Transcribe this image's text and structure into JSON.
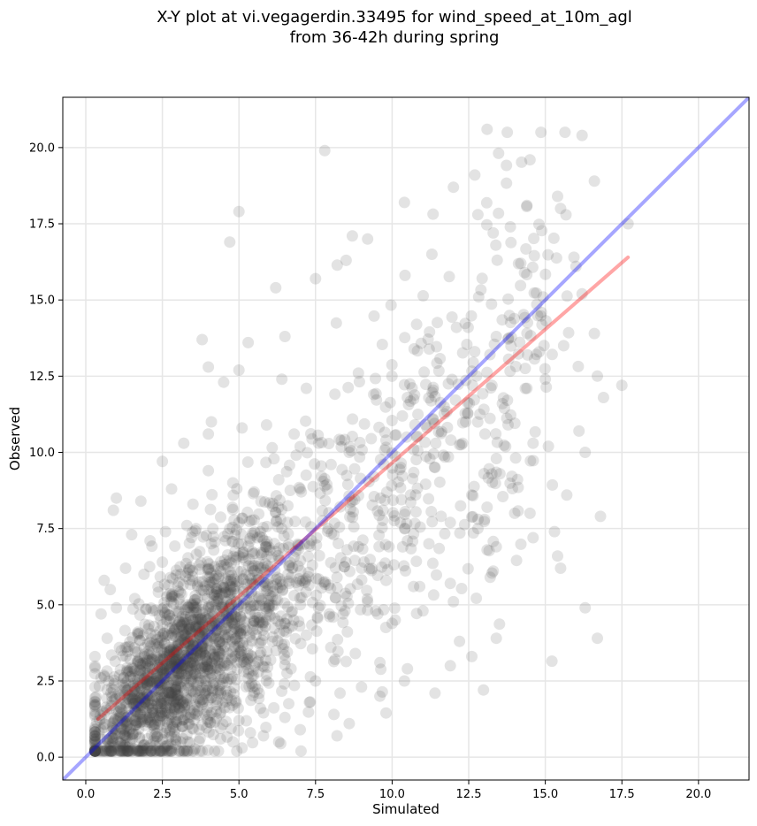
{
  "chart_data": {
    "type": "scatter",
    "title_lines": [
      "X-Y plot at vi.vegagerdin.33495 for wind_speed_at_10m_agl",
      "from 36-42h during spring"
    ],
    "xlabel": "Simulated",
    "ylabel": "Observed",
    "xlim": [
      -0.75,
      21.65
    ],
    "ylim": [
      -0.75,
      21.65
    ],
    "xticks": [
      0.0,
      2.5,
      5.0,
      7.5,
      10.0,
      12.5,
      15.0,
      17.5,
      20.0
    ],
    "yticks": [
      0.0,
      2.5,
      5.0,
      7.5,
      10.0,
      12.5,
      15.0,
      17.5,
      20.0
    ],
    "xtick_labels": [
      "0.0",
      "2.5",
      "5.0",
      "7.5",
      "10.0",
      "12.5",
      "15.0",
      "17.5",
      "20.0"
    ],
    "ytick_labels": [
      "0.0",
      "2.5",
      "5.0",
      "7.5",
      "10.0",
      "12.5",
      "15.0",
      "17.5",
      "20.0"
    ],
    "grid": true,
    "point_color": "#404040",
    "point_alpha": 0.15,
    "point_count_approx": 2500,
    "points": [
      [
        13.1,
        20.6
      ],
      [
        16.2,
        20.4
      ],
      [
        7.8,
        19.9
      ],
      [
        14.5,
        19.6
      ],
      [
        12.7,
        19.1
      ],
      [
        16.6,
        18.9
      ],
      [
        12.0,
        18.7
      ],
      [
        10.4,
        18.2
      ],
      [
        15.4,
        18.4
      ],
      [
        14.4,
        18.1
      ],
      [
        5.0,
        17.9
      ],
      [
        15.5,
        18.0
      ],
      [
        4.7,
        16.9
      ],
      [
        8.7,
        17.1
      ],
      [
        9.2,
        17.0
      ],
      [
        17.7,
        17.5
      ],
      [
        12.8,
        17.8
      ],
      [
        13.3,
        17.2
      ],
      [
        6.2,
        15.4
      ],
      [
        7.5,
        15.7
      ],
      [
        8.5,
        16.3
      ],
      [
        11.3,
        16.5
      ],
      [
        14.2,
        16.2
      ],
      [
        16.0,
        16.1
      ],
      [
        16.2,
        15.2
      ],
      [
        5.3,
        13.6
      ],
      [
        3.8,
        13.7
      ],
      [
        6.5,
        13.8
      ],
      [
        10.8,
        14.2
      ],
      [
        12.1,
        14.1
      ],
      [
        13.4,
        13.8
      ],
      [
        15.6,
        13.5
      ],
      [
        16.6,
        13.9
      ],
      [
        17.5,
        12.2
      ],
      [
        16.7,
        12.5
      ],
      [
        15.0,
        12.4
      ],
      [
        14.4,
        12.1
      ],
      [
        13.6,
        11.6
      ],
      [
        4.0,
        12.8
      ],
      [
        4.5,
        12.3
      ],
      [
        5.0,
        12.7
      ],
      [
        6.4,
        12.4
      ],
      [
        7.2,
        12.1
      ],
      [
        8.9,
        12.6
      ],
      [
        9.4,
        11.9
      ],
      [
        10.5,
        11.8
      ],
      [
        11.7,
        11.5
      ],
      [
        12.4,
        11.0
      ],
      [
        2.5,
        9.7
      ],
      [
        3.2,
        10.3
      ],
      [
        4.0,
        10.6
      ],
      [
        4.1,
        11.0
      ],
      [
        5.1,
        10.8
      ],
      [
        5.9,
        10.9
      ],
      [
        6.8,
        10.6
      ],
      [
        7.6,
        10.3
      ],
      [
        8.6,
        10.0
      ],
      [
        9.8,
        10.4
      ],
      [
        10.7,
        10.1
      ],
      [
        11.4,
        9.5
      ],
      [
        12.3,
        10.3
      ],
      [
        13.0,
        9.3
      ],
      [
        14.6,
        10.3
      ],
      [
        15.1,
        10.2
      ],
      [
        16.1,
        10.7
      ],
      [
        16.3,
        10.0
      ],
      [
        16.9,
        11.8
      ],
      [
        1.0,
        8.5
      ],
      [
        0.9,
        8.1
      ],
      [
        1.8,
        8.4
      ],
      [
        2.8,
        8.8
      ],
      [
        3.5,
        8.3
      ],
      [
        4.0,
        9.4
      ],
      [
        4.8,
        9.0
      ],
      [
        5.5,
        8.7
      ],
      [
        6.3,
        9.1
      ],
      [
        7.0,
        8.8
      ],
      [
        7.8,
        8.9
      ],
      [
        8.7,
        8.4
      ],
      [
        9.7,
        8.1
      ],
      [
        10.6,
        8.6
      ],
      [
        11.6,
        7.9
      ],
      [
        12.6,
        8.6
      ],
      [
        13.1,
        8.2
      ],
      [
        14.0,
        8.0
      ],
      [
        14.5,
        8.0
      ],
      [
        15.7,
        8.6
      ],
      [
        16.8,
        7.9
      ],
      [
        15.3,
        7.4
      ],
      [
        14.6,
        7.2
      ],
      [
        13.4,
        6.9
      ],
      [
        13.1,
        6.8
      ],
      [
        12.8,
        7.5
      ],
      [
        11.9,
        7.7
      ],
      [
        1.5,
        7.3
      ],
      [
        2.1,
        7.1
      ],
      [
        2.6,
        7.4
      ],
      [
        3.3,
        7.6
      ],
      [
        4.1,
        7.0
      ],
      [
        4.7,
        7.5
      ],
      [
        5.6,
        7.2
      ],
      [
        6.4,
        7.5
      ],
      [
        7.3,
        7.0
      ],
      [
        8.1,
        7.3
      ],
      [
        8.9,
        6.9
      ],
      [
        9.9,
        6.9
      ],
      [
        10.5,
        7.1
      ],
      [
        11.2,
        7.0
      ],
      [
        0.6,
        5.8
      ],
      [
        0.8,
        5.5
      ],
      [
        1.3,
        6.2
      ],
      [
        1.9,
        6.0
      ],
      [
        2.5,
        6.4
      ],
      [
        3.1,
        6.0
      ],
      [
        3.7,
        6.3
      ],
      [
        4.4,
        6.1
      ],
      [
        5.0,
        6.6
      ],
      [
        5.7,
        6.2
      ],
      [
        6.6,
        6.0
      ],
      [
        7.4,
        6.3
      ],
      [
        8.2,
        5.9
      ],
      [
        9.0,
        6.2
      ],
      [
        9.8,
        5.8
      ],
      [
        10.9,
        5.6
      ],
      [
        11.9,
        5.7
      ],
      [
        12.0,
        5.1
      ],
      [
        13.2,
        5.9
      ],
      [
        15.4,
        6.6
      ],
      [
        15.5,
        6.2
      ],
      [
        16.3,
        4.9
      ],
      [
        16.7,
        3.9
      ],
      [
        13.4,
        3.9
      ],
      [
        12.6,
        3.3
      ],
      [
        12.2,
        3.8
      ],
      [
        11.9,
        3.0
      ],
      [
        11.4,
        2.1
      ],
      [
        0.5,
        4.7
      ],
      [
        1.0,
        4.9
      ],
      [
        1.6,
        5.2
      ],
      [
        2.2,
        4.8
      ],
      [
        2.8,
        5.3
      ],
      [
        3.4,
        4.9
      ],
      [
        4.0,
        5.5
      ],
      [
        4.6,
        5.1
      ],
      [
        5.3,
        5.4
      ],
      [
        6.0,
        5.0
      ],
      [
        6.8,
        5.3
      ],
      [
        7.6,
        4.9
      ],
      [
        8.4,
        4.7
      ],
      [
        9.2,
        5.1
      ],
      [
        10.1,
        4.5
      ],
      [
        10.7,
        5.6
      ],
      [
        0.3,
        3.3
      ],
      [
        0.7,
        3.9
      ],
      [
        1.1,
        3.6
      ],
      [
        1.7,
        4.1
      ],
      [
        2.3,
        3.7
      ],
      [
        2.9,
        4.2
      ],
      [
        3.5,
        3.8
      ],
      [
        4.2,
        4.3
      ],
      [
        4.9,
        3.9
      ],
      [
        5.6,
        4.2
      ],
      [
        6.4,
        3.7
      ],
      [
        7.2,
        4.0
      ],
      [
        8.0,
        3.6
      ],
      [
        8.8,
        3.4
      ],
      [
        9.6,
        3.1
      ],
      [
        10.5,
        2.9
      ],
      [
        0.5,
        2.6
      ],
      [
        0.9,
        2.2
      ],
      [
        1.4,
        2.8
      ],
      [
        2.0,
        2.4
      ],
      [
        2.6,
        2.9
      ],
      [
        3.2,
        2.5
      ],
      [
        3.8,
        3.0
      ],
      [
        4.5,
        2.6
      ],
      [
        5.2,
        3.1
      ],
      [
        5.9,
        2.7
      ],
      [
        6.7,
        2.9
      ],
      [
        7.5,
        2.5
      ],
      [
        8.3,
        2.1
      ],
      [
        9.0,
        2.3
      ],
      [
        9.6,
        2.0
      ],
      [
        10.4,
        2.5
      ],
      [
        0.8,
        1.6
      ],
      [
        1.2,
        1.2
      ],
      [
        1.8,
        1.7
      ],
      [
        2.4,
        1.3
      ],
      [
        3.0,
        1.9
      ],
      [
        3.6,
        1.4
      ],
      [
        4.3,
        1.8
      ],
      [
        5.0,
        1.2
      ],
      [
        5.7,
        1.6
      ],
      [
        6.5,
        1.3
      ],
      [
        7.3,
        1.8
      ],
      [
        8.1,
        1.4
      ],
      [
        8.6,
        1.1
      ],
      [
        1.3,
        0.7
      ],
      [
        1.9,
        0.4
      ],
      [
        2.5,
        0.8
      ],
      [
        3.1,
        0.5
      ],
      [
        3.7,
        0.9
      ],
      [
        4.4,
        0.6
      ],
      [
        5.1,
        0.3
      ],
      [
        5.8,
        0.7
      ],
      [
        6.3,
        0.5
      ],
      [
        7.0,
        0.9
      ],
      [
        8.2,
        0.7
      ],
      [
        0.8,
        0.3
      ],
      [
        2.7,
        0.2
      ],
      [
        4.8,
        0.5
      ]
    ],
    "series": [
      {
        "type": "line",
        "color": "#ff0000",
        "alpha": 0.35,
        "x": [
          0.4,
          17.7
        ],
        "y": [
          1.25,
          16.4
        ]
      },
      {
        "type": "line",
        "color": "#0000ff",
        "alpha": 0.35,
        "x": [
          -0.75,
          21.65
        ],
        "y": [
          -0.75,
          21.65
        ]
      }
    ]
  }
}
